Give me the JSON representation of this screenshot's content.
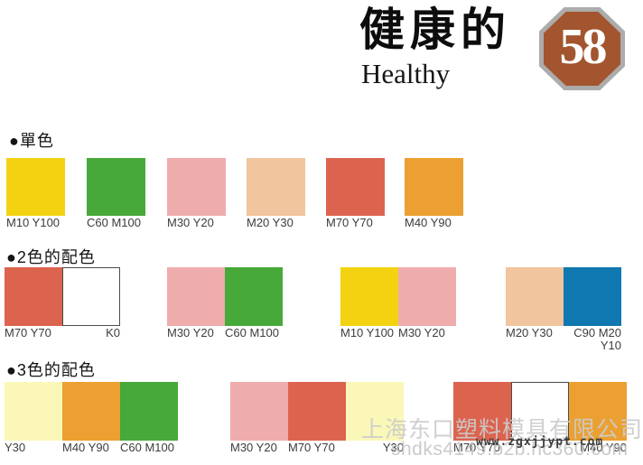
{
  "header": {
    "title": "健康的",
    "subtitle": "Healthy",
    "badge_number": "58"
  },
  "colors": {
    "badge_fill": "#A2552E",
    "badge_border": "#ACACAC"
  },
  "sections": {
    "single": {
      "heading": "●單色",
      "swatches": [
        {
          "label": "M10 Y100",
          "color": "#F3D311"
        },
        {
          "label": "C60 M100",
          "color": "#46A939"
        },
        {
          "label": "M30 Y20",
          "color": "#EFACAC"
        },
        {
          "label": "M20 Y30",
          "color": "#F1C59D"
        },
        {
          "label": "M70 Y70",
          "color": "#DC644F"
        },
        {
          "label": "M40 Y90",
          "color": "#EBA031"
        }
      ]
    },
    "two": {
      "heading": "●2色的配色",
      "groups": [
        [
          {
            "label": "M70 Y70",
            "color": "#DC644F"
          },
          {
            "label": "K0",
            "color": "#FFFFFF",
            "border": true,
            "align": "right"
          }
        ],
        [
          {
            "label": "M30 Y20",
            "color": "#EFACAC"
          },
          {
            "label": "C60 M100",
            "color": "#46A939"
          }
        ],
        [
          {
            "label": "M10 Y100",
            "color": "#F3D311"
          },
          {
            "label": "M30 Y20",
            "color": "#EFACAC"
          }
        ],
        [
          {
            "label": "M20 Y30",
            "color": "#F1C59D"
          },
          {
            "label": "C90 M20",
            "label2": "Y10",
            "color": "#1078B0",
            "align": "right"
          }
        ]
      ]
    },
    "three": {
      "heading": "●3色的配色",
      "groups": [
        [
          {
            "label": "Y30",
            "color": "#FAF7B8"
          },
          {
            "label": "M40 Y90",
            "color": "#EBA031"
          },
          {
            "label": "C60 M100",
            "color": "#46A939"
          }
        ],
        [
          {
            "label": "M30 Y20",
            "color": "#EFACAC"
          },
          {
            "label": "M70 Y70",
            "color": "#DC644F"
          },
          {
            "label": "Y30",
            "color": "#FAF7B8",
            "align": "right"
          }
        ],
        [
          {
            "label": "M70 Y70",
            "color": "#DC644F"
          },
          {
            "label": "",
            "color": "#FFFFFF",
            "border": true
          },
          {
            "label": "M40 Y90",
            "color": "#EBA031",
            "align": "right"
          }
        ]
      ]
    }
  },
  "watermarks": {
    "company": "上海东口塑料模具有限公司",
    "site": "www.zgxjjypt.com",
    "shop": "shdks4149.b2b.hc360.com"
  }
}
